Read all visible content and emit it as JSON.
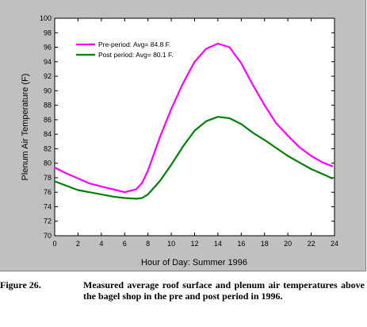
{
  "chart_data": {
    "type": "line",
    "xlabel": "Hour of Day: Summer 1996",
    "ylabel": "Plenum Air Temperature (F)",
    "xlim": [
      0,
      24
    ],
    "ylim": [
      70,
      100
    ],
    "xticks": [
      0,
      2,
      4,
      6,
      8,
      10,
      12,
      14,
      16,
      18,
      20,
      22,
      24
    ],
    "yticks": [
      70,
      72,
      74,
      76,
      78,
      80,
      82,
      84,
      86,
      88,
      90,
      92,
      94,
      96,
      98,
      100
    ],
    "grid": false,
    "legend_position": "top-left",
    "x": [
      0,
      1,
      2,
      3,
      4,
      5,
      6,
      7,
      7.5,
      8,
      9,
      10,
      11,
      12,
      13,
      14,
      15,
      16,
      17,
      18,
      19,
      20,
      21,
      22,
      23,
      23.8
    ],
    "series": [
      {
        "name": "Pre-period: Avg= 84.8 F.",
        "color": "#ff00ff",
        "values": [
          79.4,
          78.6,
          77.9,
          77.2,
          76.8,
          76.4,
          76.0,
          76.4,
          77.3,
          79.0,
          83.5,
          87.5,
          91.0,
          94.0,
          95.8,
          96.5,
          96.0,
          93.8,
          90.8,
          88.0,
          85.5,
          83.8,
          82.2,
          81.0,
          80.1,
          79.6
        ]
      },
      {
        "name": "Post period: Avg= 80.1 F.",
        "color": "#008000",
        "values": [
          77.5,
          76.9,
          76.3,
          76.0,
          75.7,
          75.4,
          75.2,
          75.1,
          75.2,
          75.7,
          77.5,
          79.8,
          82.3,
          84.5,
          85.8,
          86.4,
          86.2,
          85.4,
          84.2,
          83.2,
          82.1,
          81.0,
          80.1,
          79.2,
          78.5,
          77.9
        ]
      }
    ]
  },
  "caption": {
    "label": "Figure 26.",
    "text": "Measured average roof surface and plenum air temperatures above the bagel shop in the pre and post period in 1996."
  }
}
